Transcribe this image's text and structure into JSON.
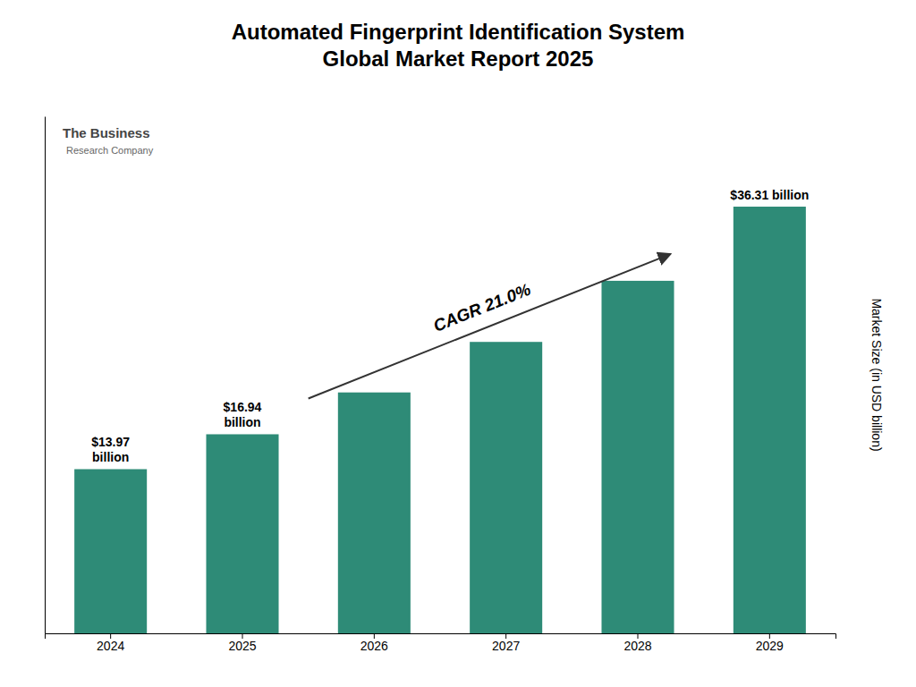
{
  "chart_data": {
    "type": "bar",
    "title": "Automated Fingerprint Identification System\nGlobal Market Report 2025",
    "categories": [
      "2024",
      "2025",
      "2026",
      "2027",
      "2028",
      "2029"
    ],
    "values": [
      13.97,
      16.94,
      20.5,
      24.8,
      30.0,
      36.31
    ],
    "color": "#2e8b77",
    "ylim": [
      0,
      44
    ],
    "y_label": "Market Size (in USD billion)",
    "data_labels": true,
    "value_labels": [
      "$13.97\nbillion",
      "$16.94\nbillion",
      null,
      null,
      null,
      "$36.31 billion"
    ],
    "annotations": [
      "CAGR 21.0%",
      "The Business",
      "Research Company"
    ],
    "tick_labels": "x"
  }
}
